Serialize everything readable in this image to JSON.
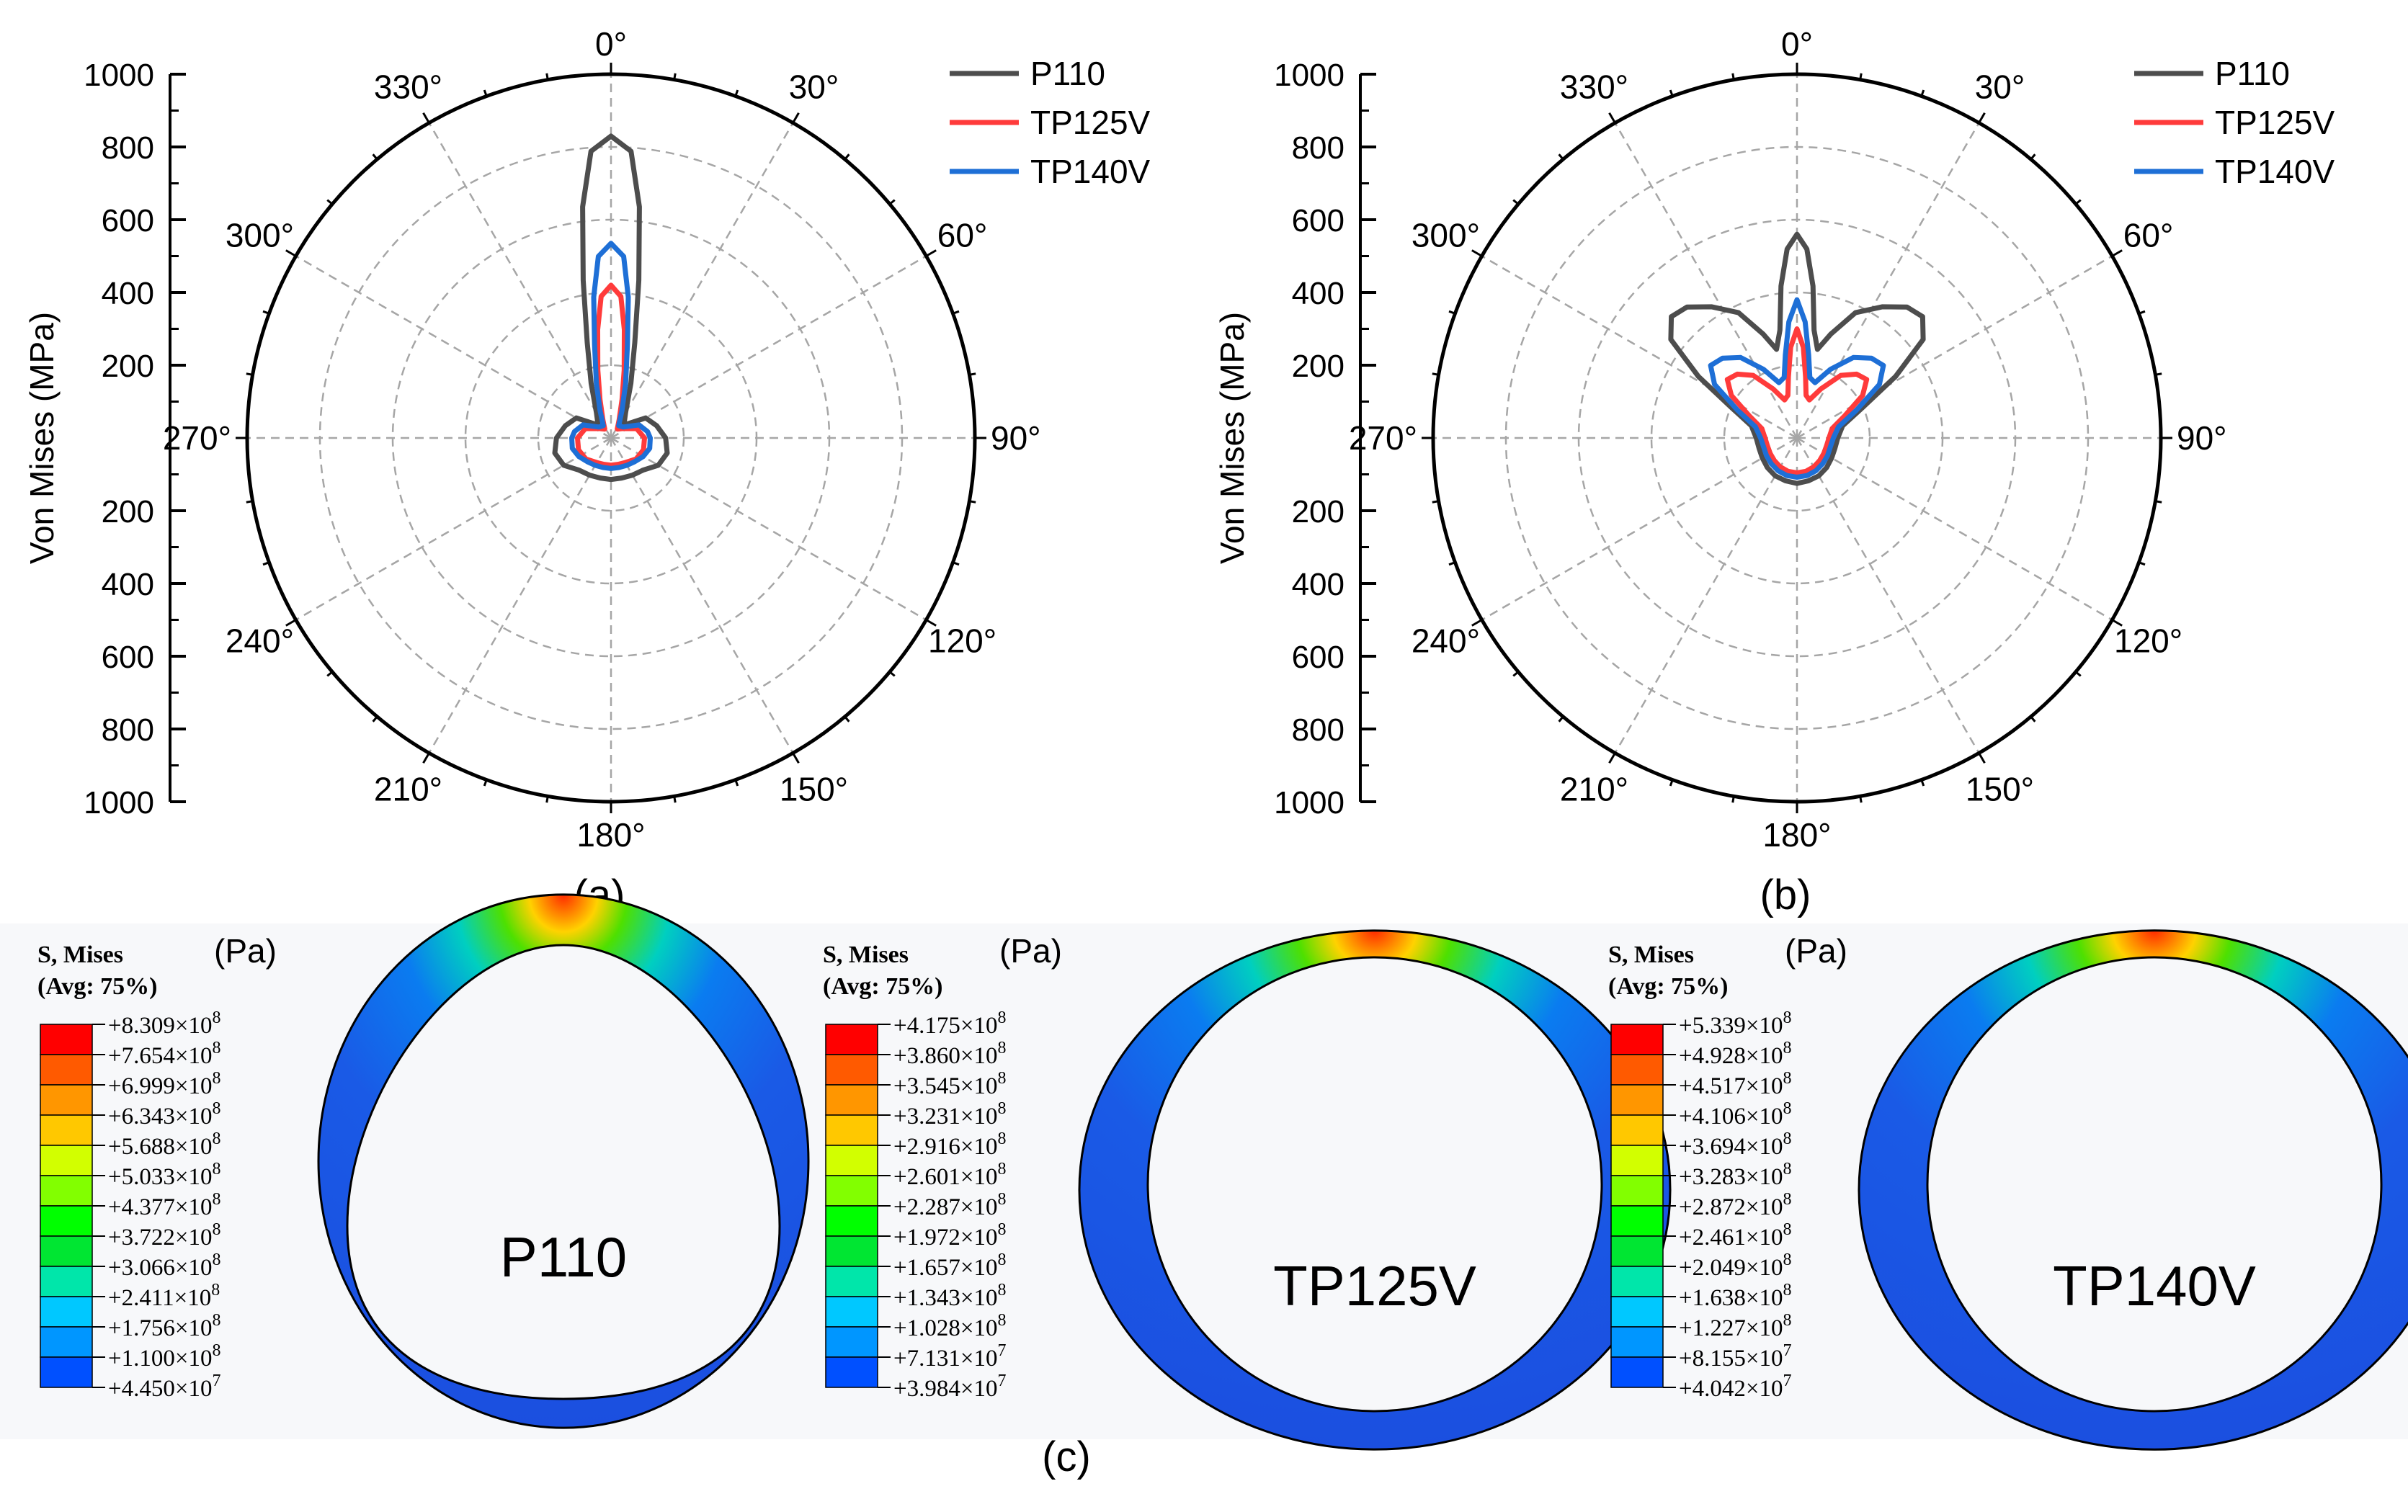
{
  "chart_data": [
    {
      "type": "polar",
      "panel_label": "(a)",
      "ylabel": "Von Mises (MPa)",
      "r_range": [
        0,
        1000
      ],
      "r_ticks": [
        "1000",
        "800",
        "600",
        "400",
        "200",
        "200",
        "400",
        "600",
        "800",
        "1000"
      ],
      "r_tick_values": [
        1000,
        800,
        600,
        400,
        200,
        200,
        400,
        600,
        800,
        1000
      ],
      "zero_tick": "0",
      "angle_labels": [
        "0°",
        "30°",
        "60°",
        "90°",
        "120°",
        "150°",
        "180°",
        "210°",
        "240°",
        "270°",
        "300°",
        "330°"
      ],
      "angle_values_deg": [
        0,
        30,
        60,
        90,
        120,
        150,
        180,
        210,
        240,
        270,
        300,
        330
      ],
      "legend": [
        "P110",
        "TP125V",
        "TP140V"
      ],
      "series": [
        {
          "name": "P110",
          "color": "#4d4d4d",
          "theta_deg": [
            0,
            4,
            7,
            10,
            14,
            20,
            30,
            45,
            60,
            75,
            90,
            105,
            120,
            135,
            150,
            165,
            180,
            195,
            210,
            225,
            240,
            255,
            270,
            285,
            300,
            315,
            330,
            340,
            346,
            350,
            353,
            356
          ],
          "r": [
            830,
            790,
            640,
            440,
            270,
            160,
            80,
            50,
            110,
            130,
            150,
            160,
            150,
            125,
            118,
            114,
            114,
            114,
            118,
            125,
            150,
            160,
            150,
            130,
            110,
            50,
            80,
            160,
            270,
            440,
            640,
            790
          ]
        },
        {
          "name": "TP125V",
          "color": "#ff3b3b",
          "theta_deg": [
            0,
            4,
            7,
            11,
            16,
            24,
            35,
            50,
            70,
            90,
            110,
            130,
            150,
            165,
            180,
            195,
            210,
            230,
            250,
            270,
            290,
            310,
            325,
            336,
            344,
            349,
            353,
            356
          ],
          "r": [
            420,
            390,
            300,
            190,
            110,
            55,
            30,
            40,
            75,
            92,
            95,
            90,
            78,
            75,
            75,
            75,
            78,
            90,
            95,
            92,
            75,
            40,
            30,
            55,
            110,
            190,
            300,
            390
          ]
        },
        {
          "name": "TP140V",
          "color": "#1e6fd6",
          "theta_deg": [
            0,
            4,
            7,
            10,
            15,
            22,
            32,
            48,
            65,
            80,
            90,
            105,
            120,
            135,
            150,
            165,
            180,
            195,
            210,
            225,
            240,
            255,
            270,
            280,
            295,
            312,
            328,
            338,
            345,
            350,
            353,
            356
          ],
          "r": [
            535,
            500,
            390,
            260,
            155,
            80,
            40,
            45,
            85,
            102,
            108,
            110,
            102,
            92,
            87,
            84,
            84,
            84,
            87,
            92,
            102,
            110,
            108,
            102,
            85,
            45,
            40,
            80,
            155,
            260,
            390,
            500
          ]
        }
      ]
    },
    {
      "type": "polar",
      "panel_label": "(b)",
      "ylabel": "Von Mises (MPa)",
      "r_range": [
        0,
        1000
      ],
      "r_ticks": [
        "1000",
        "800",
        "600",
        "400",
        "200",
        "200",
        "400",
        "600",
        "800",
        "1000"
      ],
      "r_tick_values": [
        1000,
        800,
        600,
        400,
        200,
        200,
        400,
        600,
        800,
        1000
      ],
      "zero_tick": "0",
      "angle_labels": [
        "0°",
        "30°",
        "60°",
        "90°",
        "120°",
        "150°",
        "180°",
        "210°",
        "240°",
        "270°",
        "300°",
        "330°"
      ],
      "angle_values_deg": [
        0,
        30,
        60,
        90,
        120,
        150,
        180,
        210,
        240,
        270,
        300,
        330
      ],
      "legend": [
        "P110",
        "TP125V",
        "TP140V"
      ],
      "series": [
        {
          "name": "P110",
          "color": "#4d4d4d",
          "theta_deg": [
            0,
            3,
            6,
            9,
            13,
            18,
            25,
            33,
            40,
            46,
            52,
            58,
            65,
            75,
            90,
            105,
            120,
            135,
            150,
            165,
            180,
            195,
            210,
            225,
            240,
            255,
            270,
            285,
            295,
            302,
            308,
            314,
            320,
            327,
            335,
            342,
            347,
            351,
            354,
            357
          ],
          "r": [
            560,
            520,
            420,
            300,
            250,
            300,
            380,
            430,
            470,
            480,
            440,
            320,
            200,
            130,
            112,
            108,
            110,
            115,
            120,
            122,
            125,
            122,
            120,
            115,
            110,
            108,
            112,
            130,
            200,
            320,
            440,
            480,
            470,
            430,
            380,
            300,
            250,
            300,
            420,
            520
          ]
        },
        {
          "name": "TP125V",
          "color": "#ff3b3b",
          "theta_deg": [
            0,
            4,
            8,
            12,
            18,
            26,
            35,
            43,
            50,
            57,
            65,
            75,
            90,
            105,
            120,
            135,
            150,
            165,
            180,
            195,
            210,
            225,
            240,
            255,
            270,
            285,
            295,
            303,
            310,
            317,
            325,
            334,
            342,
            348,
            352,
            356
          ],
          "r": [
            300,
            250,
            170,
            120,
            110,
            150,
            210,
            240,
            250,
            215,
            145,
            100,
            88,
            84,
            85,
            88,
            92,
            95,
            96,
            95,
            92,
            88,
            85,
            84,
            88,
            100,
            145,
            215,
            250,
            240,
            210,
            150,
            110,
            120,
            170,
            250
          ]
        },
        {
          "name": "TP140V",
          "color": "#1e6fd6",
          "theta_deg": [
            0,
            4,
            8,
            12,
            18,
            26,
            35,
            43,
            50,
            57,
            65,
            75,
            90,
            105,
            120,
            135,
            150,
            165,
            180,
            195,
            210,
            225,
            240,
            255,
            270,
            285,
            295,
            303,
            310,
            317,
            325,
            334,
            342,
            348,
            352,
            356
          ],
          "r": [
            380,
            320,
            230,
            170,
            160,
            210,
            270,
            300,
            310,
            270,
            180,
            118,
            100,
            95,
            97,
            100,
            104,
            107,
            108,
            107,
            104,
            100,
            97,
            95,
            100,
            118,
            180,
            270,
            310,
            300,
            270,
            210,
            160,
            170,
            230,
            320
          ]
        }
      ]
    },
    {
      "type": "contour",
      "panel_label": "(c)",
      "title_line1": "S, Mises",
      "title_line2": "(Avg: 75%)",
      "unit": "(Pa)",
      "palette": [
        "#ff0000",
        "#ff5a00",
        "#ff9600",
        "#ffc800",
        "#d2ff00",
        "#82ff00",
        "#00ff00",
        "#00e632",
        "#00e6aa",
        "#00c8ff",
        "#0096ff",
        "#0050ff",
        "#0000ff"
      ],
      "plots": [
        {
          "name": "P110",
          "label": "P110",
          "levels": [
            "+8.309×10",
            "+7.654×10",
            "+6.999×10",
            "+6.343×10",
            "+5.688×10",
            "+5.033×10",
            "+4.377×10",
            "+3.722×10",
            "+3.066×10",
            "+2.411×10",
            "+1.756×10",
            "+1.100×10",
            "+4.450×10"
          ],
          "exponents": [
            "8",
            "8",
            "8",
            "8",
            "8",
            "8",
            "8",
            "8",
            "8",
            "8",
            "8",
            "8",
            "7"
          ]
        },
        {
          "name": "TP125V",
          "label": "TP125V",
          "levels": [
            "+4.175×10",
            "+3.860×10",
            "+3.545×10",
            "+3.231×10",
            "+2.916×10",
            "+2.601×10",
            "+2.287×10",
            "+1.972×10",
            "+1.657×10",
            "+1.343×10",
            "+1.028×10",
            "+7.131×10",
            "+3.984×10"
          ],
          "exponents": [
            "8",
            "8",
            "8",
            "8",
            "8",
            "8",
            "8",
            "8",
            "8",
            "8",
            "8",
            "7",
            "7"
          ]
        },
        {
          "name": "TP140V",
          "label": "TP140V",
          "levels": [
            "+5.339×10",
            "+4.928×10",
            "+4.517×10",
            "+4.106×10",
            "+3.694×10",
            "+3.283×10",
            "+2.872×10",
            "+2.461×10",
            "+2.049×10",
            "+1.638×10",
            "+1.227×10",
            "+8.155×10",
            "+4.042×10"
          ],
          "exponents": [
            "8",
            "8",
            "8",
            "8",
            "8",
            "8",
            "8",
            "8",
            "8",
            "8",
            "8",
            "7",
            "7"
          ]
        }
      ]
    }
  ]
}
